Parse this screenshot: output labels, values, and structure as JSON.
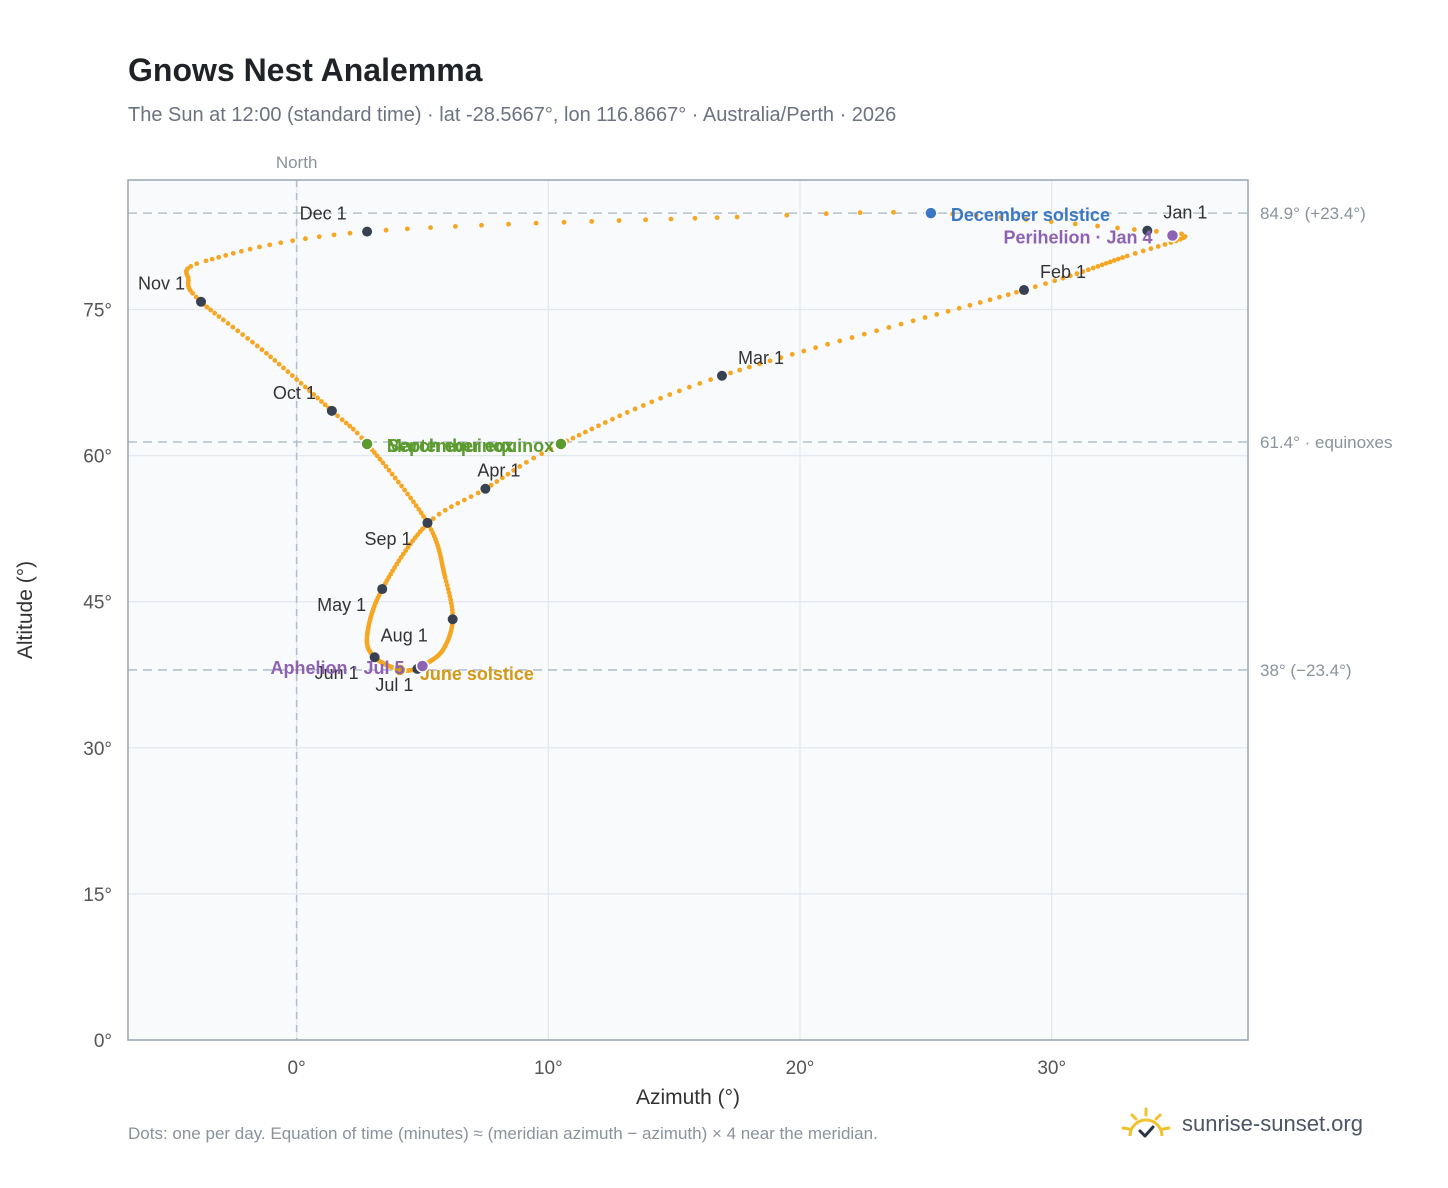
{
  "title": "Gnows Nest Analemma",
  "subtitle": "The Sun at 12:00 (standard time) · lat -28.5667°, lon 116.8667° · Australia/Perth · 2026",
  "footnote": "Dots: one per day. Equation of time (minutes) ≈ (meridian azimuth − azimuth) × 4 near the meridian.",
  "brand": "sunrise-sunset.org",
  "colors": {
    "curve": "#f5a623",
    "month_marker": "#374151",
    "equinox": "#5a9a2e",
    "december_solstice": "#3b78c3",
    "june_solstice": "#d49a16",
    "apsis": "#8e62b3",
    "plot_bg": "#f8fafc",
    "grid": "#e3e8ee",
    "reference": "#b6c0cb",
    "axis": "#9aa5b1"
  },
  "chart_data": {
    "type": "scatter",
    "xlabel": "Azimuth (°)",
    "ylabel": "Altitude (°)",
    "xlim": [
      -6.7,
      37.8
    ],
    "ylim": [
      0,
      88.3
    ],
    "grid": true,
    "x_ticks": [
      {
        "value": 0,
        "label": "0°"
      },
      {
        "value": 10,
        "label": "10°"
      },
      {
        "value": 20,
        "label": "20°"
      },
      {
        "value": 30,
        "label": "30°"
      }
    ],
    "y_ticks": [
      {
        "value": 0,
        "label": "0°"
      },
      {
        "value": 15,
        "label": "15°"
      },
      {
        "value": 30,
        "label": "30°"
      },
      {
        "value": 45,
        "label": "45°"
      },
      {
        "value": 60,
        "label": "60°"
      },
      {
        "value": 75,
        "label": "75°"
      }
    ],
    "north_marker": {
      "x": 0,
      "label": "North"
    },
    "reference_lines": [
      {
        "y": 84.9,
        "label": "84.9° (+23.4°)"
      },
      {
        "y": 61.4,
        "label": "61.4° · equinoxes"
      },
      {
        "y": 38.0,
        "label": "38° (−23.4°)"
      }
    ],
    "daily_path_keypoints": [
      {
        "doy": 1,
        "x": 33.8,
        "y": 83.1
      },
      {
        "doy": 5,
        "x": 35.3,
        "y": 82.5
      },
      {
        "doy": 15,
        "x": 33.0,
        "y": 80.5
      },
      {
        "doy": 32,
        "x": 28.9,
        "y": 77.0
      },
      {
        "doy": 60,
        "x": 16.9,
        "y": 68.2
      },
      {
        "doy": 80,
        "x": 10.5,
        "y": 61.2
      },
      {
        "doy": 91,
        "x": 7.5,
        "y": 56.6
      },
      {
        "doy": 100,
        "x": 5.2,
        "y": 53.0
      },
      {
        "doy": 121,
        "x": 3.4,
        "y": 46.3
      },
      {
        "doy": 140,
        "x": 2.8,
        "y": 41.5
      },
      {
        "doy": 152,
        "x": 3.1,
        "y": 39.3
      },
      {
        "doy": 172,
        "x": 4.1,
        "y": 38.0
      },
      {
        "doy": 182,
        "x": 4.8,
        "y": 38.1
      },
      {
        "doy": 186,
        "x": 5.0,
        "y": 38.4
      },
      {
        "doy": 200,
        "x": 5.8,
        "y": 40.0
      },
      {
        "doy": 213,
        "x": 6.2,
        "y": 43.2
      },
      {
        "doy": 225,
        "x": 5.9,
        "y": 47.5
      },
      {
        "doy": 244,
        "x": 5.2,
        "y": 53.1
      },
      {
        "doy": 266,
        "x": 2.8,
        "y": 61.2
      },
      {
        "doy": 274,
        "x": 1.4,
        "y": 64.6
      },
      {
        "doy": 290,
        "x": -1.2,
        "y": 70.5
      },
      {
        "doy": 305,
        "x": -3.8,
        "y": 75.8
      },
      {
        "doy": 312,
        "x": -4.3,
        "y": 78.0
      },
      {
        "doy": 320,
        "x": -3.6,
        "y": 80.0
      },
      {
        "doy": 335,
        "x": 2.8,
        "y": 83.0
      },
      {
        "doy": 350,
        "x": 17.5,
        "y": 84.5
      },
      {
        "doy": 355,
        "x": 25.2,
        "y": 84.9
      },
      {
        "doy": 365,
        "x": 33.8,
        "y": 83.1
      }
    ],
    "month_markers": [
      {
        "label": "Jan 1",
        "x": 33.8,
        "y": 83.1
      },
      {
        "label": "Feb 1",
        "x": 28.9,
        "y": 77.0
      },
      {
        "label": "Mar 1",
        "x": 16.9,
        "y": 68.2
      },
      {
        "label": "Apr 1",
        "x": 7.5,
        "y": 56.6
      },
      {
        "label": "May 1",
        "x": 3.4,
        "y": 46.3
      },
      {
        "label": "Jun 1",
        "x": 3.1,
        "y": 39.3
      },
      {
        "label": "Jul 1",
        "x": 4.8,
        "y": 38.1
      },
      {
        "label": "Aug 1",
        "x": 6.2,
        "y": 43.2
      },
      {
        "label": "Sep 1",
        "x": 5.2,
        "y": 53.1
      },
      {
        "label": "Oct 1",
        "x": 1.4,
        "y": 64.6
      },
      {
        "label": "Nov 1",
        "x": -3.8,
        "y": 75.8
      },
      {
        "label": "Dec 1",
        "x": 2.8,
        "y": 83.0
      }
    ],
    "events": [
      {
        "label": "March equinox",
        "x": 10.5,
        "y": 61.2,
        "kind": "equinox"
      },
      {
        "label": "September equinox",
        "x": 2.8,
        "y": 61.2,
        "kind": "equinox"
      },
      {
        "label": "December solstice",
        "x": 25.2,
        "y": 84.9,
        "kind": "december_solstice"
      },
      {
        "label": "June solstice",
        "x": 4.1,
        "y": 38.0,
        "kind": "june_solstice"
      },
      {
        "label": "Perihelion · Jan 4",
        "x": 34.8,
        "y": 82.6,
        "kind": "apsis"
      },
      {
        "label": "Aphelion · Jul 5",
        "x": 5.0,
        "y": 38.4,
        "kind": "apsis"
      }
    ]
  }
}
